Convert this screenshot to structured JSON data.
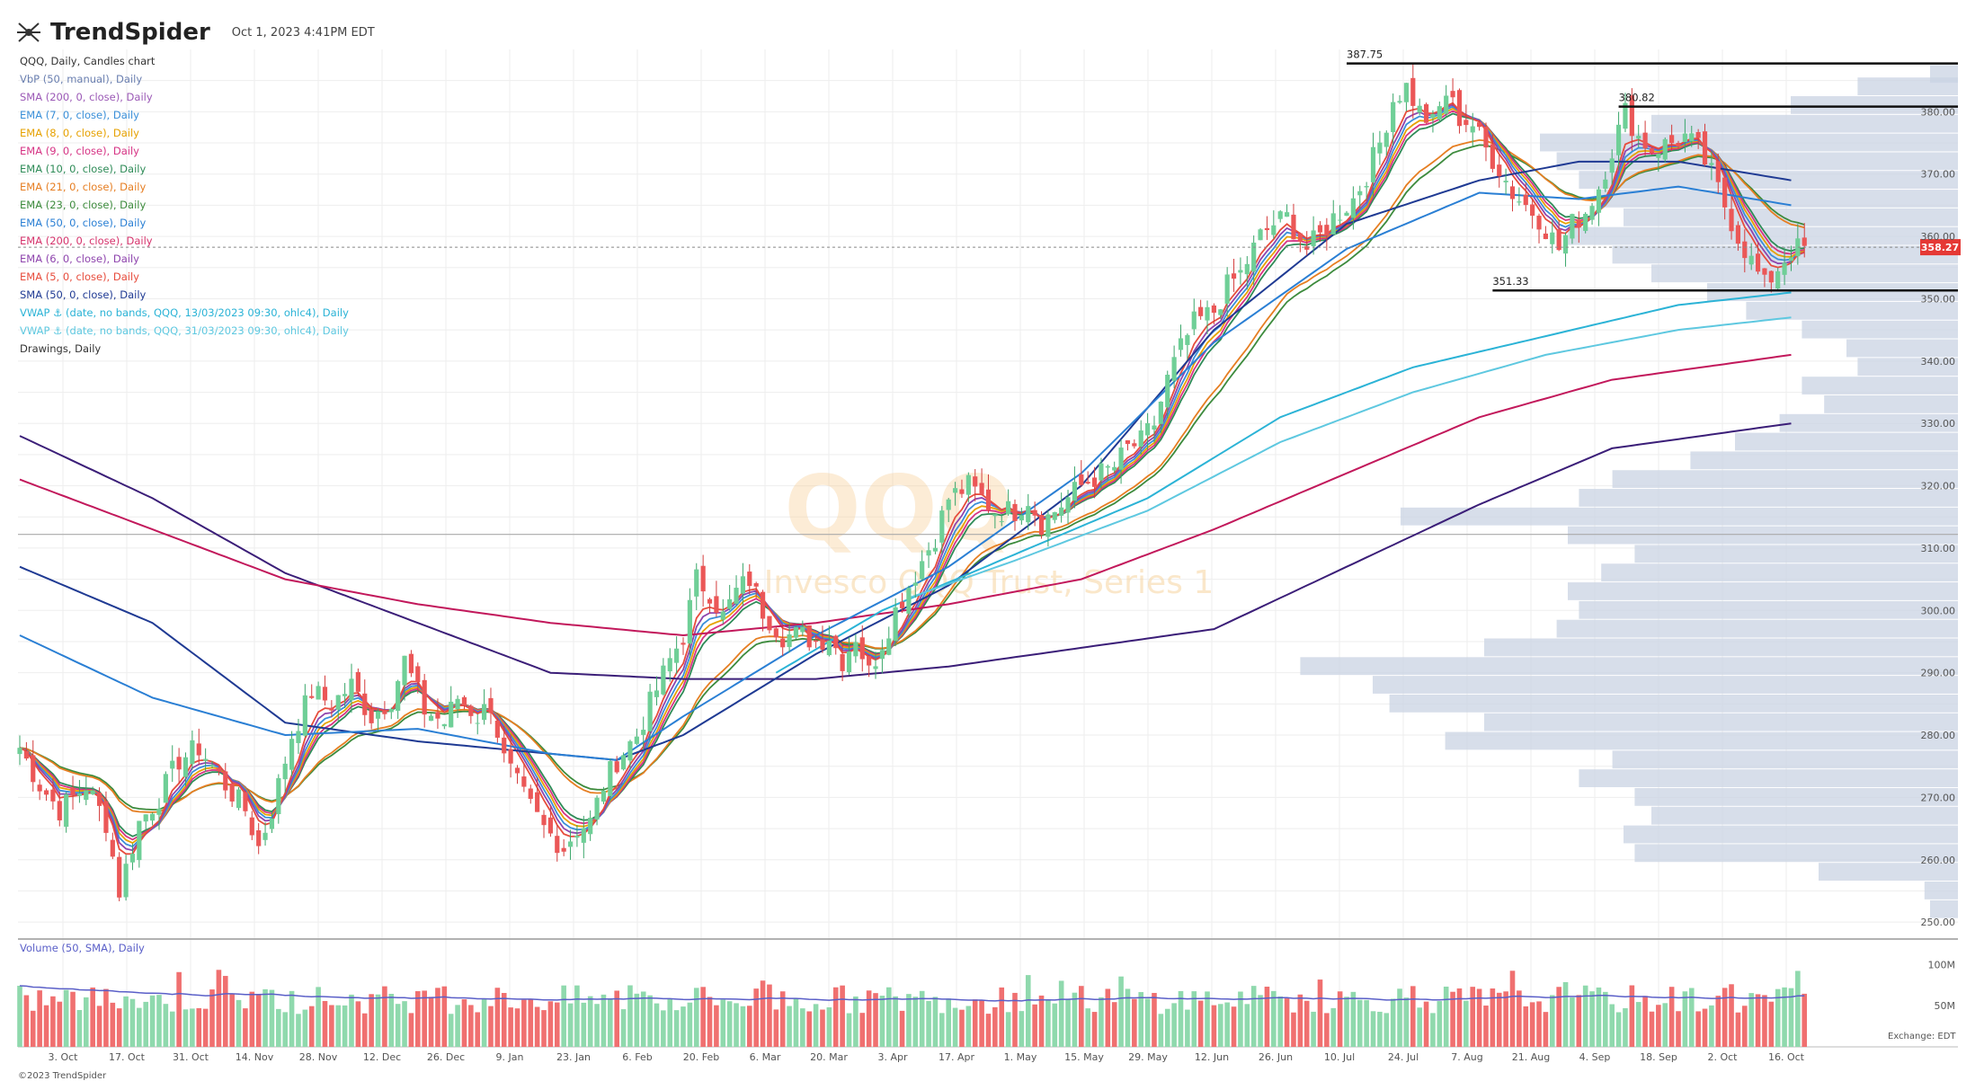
{
  "header": {
    "brand": "TrendSpider",
    "timestamp": "Oct 1, 2023 4:41PM EDT"
  },
  "legend": [
    {
      "label": "QQQ, Daily, Candles chart",
      "color": "#333333"
    },
    {
      "label": "VbP (50, manual), Daily",
      "color": "#6a7fb0"
    },
    {
      "label": "SMA (200, 0, close), Daily",
      "color": "#9b59b6"
    },
    {
      "label": "EMA (7, 0, close), Daily",
      "color": "#3a8fd8"
    },
    {
      "label": "EMA (8, 0, close), Daily",
      "color": "#e6a100"
    },
    {
      "label": "EMA (9, 0, close), Daily",
      "color": "#d63384"
    },
    {
      "label": "EMA (10, 0, close), Daily",
      "color": "#2e8b57"
    },
    {
      "label": "EMA (21, 0, close), Daily",
      "color": "#e67e22"
    },
    {
      "label": "EMA (23, 0, close), Daily",
      "color": "#3d8b3d"
    },
    {
      "label": "EMA (50, 0, close), Daily",
      "color": "#2a7fd4"
    },
    {
      "label": "EMA (200, 0, close), Daily",
      "color": "#d6336c"
    },
    {
      "label": "EMA (6, 0, close), Daily",
      "color": "#8e44ad"
    },
    {
      "label": "EMA (5, 0, close), Daily",
      "color": "#e74c3c"
    },
    {
      "label": "SMA (50, 0, close), Daily",
      "color": "#1f3a93"
    },
    {
      "label": "VWAP ⚓ (date, no bands, QQQ, 13/03/2023 09:30, ohlc4), Daily",
      "color": "#2bb3d6"
    },
    {
      "label": "VWAP ⚓ (date, no bands, QQQ, 31/03/2023 09:30, ohlc4), Daily",
      "color": "#5ec8e0"
    },
    {
      "label": "Drawings, Daily",
      "color": "#333333"
    }
  ],
  "volume_label": "Volume (50, SMA), Daily",
  "watermark": {
    "ticker": "QQQ",
    "name": "Invesco QQQ Trust, Series 1"
  },
  "copyright": "©2023 TrendSpider",
  "exchange": "Exchange: EDT",
  "colors": {
    "up": "#6fcf97",
    "down": "#eb5757",
    "vbp": "#c9d3e3",
    "grid": "#eeeeee",
    "price_tag": "#e53935"
  },
  "chart_data": {
    "type": "candlestick",
    "y_ticks": [
      "250.00",
      "260.00",
      "270.00",
      "280.00",
      "290.00",
      "300.00",
      "310.00",
      "320.00",
      "330.00",
      "340.00",
      "350.00",
      "360.00",
      "370.00",
      "380.00"
    ],
    "ylim": [
      248,
      390
    ],
    "x_ticks": [
      "3. Oct",
      "17. Oct",
      "31. Oct",
      "14. Nov",
      "28. Nov",
      "12. Dec",
      "26. Dec",
      "9. Jan",
      "23. Jan",
      "6. Feb",
      "20. Feb",
      "6. Mar",
      "20. Mar",
      "3. Apr",
      "17. Apr",
      "1. May",
      "15. May",
      "29. May",
      "12. Jun",
      "26. Jun",
      "10. Jul",
      "24. Jul",
      "7. Aug",
      "21. Aug",
      "4. Sep",
      "18. Sep",
      "2. Oct",
      "16. Oct"
    ],
    "last_price": "358.27",
    "close_path": [
      [
        0,
        278
      ],
      [
        3,
        272
      ],
      [
        6,
        268
      ],
      [
        10,
        272
      ],
      [
        13,
        266
      ],
      [
        15,
        255
      ],
      [
        18,
        266
      ],
      [
        21,
        270
      ],
      [
        24,
        276
      ],
      [
        27,
        278
      ],
      [
        31,
        272
      ],
      [
        34,
        268
      ],
      [
        36,
        262
      ],
      [
        38,
        268
      ],
      [
        41,
        280
      ],
      [
        44,
        287
      ],
      [
        47,
        285
      ],
      [
        50,
        288
      ],
      [
        53,
        283
      ],
      [
        56,
        286
      ],
      [
        58,
        292
      ],
      [
        61,
        284
      ],
      [
        64,
        282
      ],
      [
        66,
        286
      ],
      [
        69,
        283
      ],
      [
        71,
        285
      ],
      [
        73,
        276
      ],
      [
        76,
        270
      ],
      [
        79,
        265
      ],
      [
        82,
        262
      ],
      [
        84,
        265
      ],
      [
        86,
        266
      ],
      [
        88,
        272
      ],
      [
        90,
        276
      ],
      [
        93,
        280
      ],
      [
        95,
        285
      ],
      [
        98,
        292
      ],
      [
        100,
        296
      ],
      [
        102,
        305
      ],
      [
        104,
        303
      ],
      [
        106,
        299
      ],
      [
        108,
        303
      ],
      [
        110,
        305
      ],
      [
        112,
        300
      ],
      [
        115,
        296
      ],
      [
        118,
        296
      ],
      [
        120,
        295
      ],
      [
        122,
        296
      ],
      [
        124,
        292
      ],
      [
        126,
        296
      ],
      [
        128,
        290
      ],
      [
        130,
        295
      ],
      [
        132,
        300
      ],
      [
        135,
        306
      ],
      [
        138,
        312
      ],
      [
        140,
        318
      ],
      [
        143,
        320
      ],
      [
        145,
        318
      ],
      [
        147,
        316
      ],
      [
        150,
        316
      ],
      [
        152,
        318
      ],
      [
        154,
        314
      ],
      [
        156,
        316
      ],
      [
        158,
        318
      ],
      [
        160,
        320
      ],
      [
        163,
        322
      ],
      [
        165,
        323
      ],
      [
        167,
        326
      ],
      [
        169,
        327
      ],
      [
        171,
        330
      ],
      [
        173,
        337
      ],
      [
        175,
        342
      ],
      [
        177,
        346
      ],
      [
        180,
        348
      ],
      [
        182,
        352
      ],
      [
        184,
        354
      ],
      [
        187,
        360
      ],
      [
        189,
        362
      ],
      [
        191,
        363
      ],
      [
        194,
        358
      ],
      [
        196,
        360
      ],
      [
        198,
        363
      ],
      [
        201,
        366
      ],
      [
        203,
        370
      ],
      [
        205,
        375
      ],
      [
        207,
        382
      ],
      [
        209,
        384
      ],
      [
        211,
        380
      ],
      [
        213,
        378
      ],
      [
        215,
        383
      ],
      [
        217,
        379
      ],
      [
        219,
        378
      ],
      [
        221,
        374
      ],
      [
        223,
        371
      ],
      [
        225,
        367
      ],
      [
        227,
        365
      ],
      [
        229,
        363
      ],
      [
        232,
        358
      ],
      [
        234,
        362
      ],
      [
        236,
        364
      ],
      [
        238,
        368
      ],
      [
        240,
        374
      ],
      [
        242,
        380
      ],
      [
        244,
        376
      ],
      [
        246,
        374
      ],
      [
        249,
        375
      ],
      [
        251,
        376
      ],
      [
        253,
        374
      ],
      [
        255,
        370
      ],
      [
        257,
        365
      ],
      [
        259,
        360
      ],
      [
        261,
        356
      ],
      [
        263,
        352
      ],
      [
        265,
        355
      ],
      [
        267,
        358
      ]
    ],
    "close_path_note": "",
    "moving_averages": [
      {
        "name": "SMA (200)",
        "color": "#3b1e78",
        "path": [
          [
            0,
            328
          ],
          [
            20,
            318
          ],
          [
            40,
            306
          ],
          [
            60,
            298
          ],
          [
            80,
            290
          ],
          [
            100,
            289
          ],
          [
            120,
            289
          ],
          [
            140,
            291
          ],
          [
            160,
            294
          ],
          [
            180,
            297
          ],
          [
            200,
            307
          ],
          [
            220,
            317
          ],
          [
            240,
            326
          ],
          [
            267,
            330
          ]
        ]
      },
      {
        "name": "EMA (200)",
        "color": "#c2185b",
        "path": [
          [
            0,
            321
          ],
          [
            20,
            313
          ],
          [
            40,
            305
          ],
          [
            60,
            301
          ],
          [
            80,
            298
          ],
          [
            100,
            296
          ],
          [
            120,
            298
          ],
          [
            140,
            301
          ],
          [
            160,
            305
          ],
          [
            180,
            313
          ],
          [
            200,
            322
          ],
          [
            220,
            331
          ],
          [
            240,
            337
          ],
          [
            267,
            341
          ]
        ]
      },
      {
        "name": "SMA (50)",
        "color": "#1f3a93",
        "path": [
          [
            0,
            307
          ],
          [
            20,
            298
          ],
          [
            40,
            282
          ],
          [
            60,
            279
          ],
          [
            80,
            277
          ],
          [
            90,
            276
          ],
          [
            100,
            280
          ],
          [
            120,
            293
          ],
          [
            140,
            304
          ],
          [
            160,
            320
          ],
          [
            180,
            345
          ],
          [
            200,
            362
          ],
          [
            220,
            369
          ],
          [
            235,
            372
          ],
          [
            250,
            372
          ],
          [
            267,
            369
          ]
        ]
      },
      {
        "name": "EMA (50)",
        "color": "#2a7fd4",
        "path": [
          [
            0,
            296
          ],
          [
            20,
            286
          ],
          [
            40,
            280
          ],
          [
            60,
            281
          ],
          [
            80,
            277
          ],
          [
            90,
            276
          ],
          [
            100,
            283
          ],
          [
            120,
            296
          ],
          [
            140,
            307
          ],
          [
            160,
            322
          ],
          [
            180,
            343
          ],
          [
            200,
            358
          ],
          [
            220,
            367
          ],
          [
            235,
            366
          ],
          [
            250,
            368
          ],
          [
            267,
            365
          ]
        ]
      },
      {
        "name": "VWAP 13/03",
        "color": "#2bb3d6",
        "path": [
          [
            114,
            290
          ],
          [
            130,
            300
          ],
          [
            150,
            309
          ],
          [
            170,
            318
          ],
          [
            190,
            331
          ],
          [
            210,
            339
          ],
          [
            230,
            344
          ],
          [
            250,
            349
          ],
          [
            267,
            351
          ]
        ]
      },
      {
        "name": "VWAP 31/03",
        "color": "#5ec8e0",
        "path": [
          [
            134,
            302
          ],
          [
            150,
            308
          ],
          [
            170,
            316
          ],
          [
            190,
            327
          ],
          [
            210,
            335
          ],
          [
            230,
            341
          ],
          [
            250,
            345
          ],
          [
            267,
            347
          ]
        ]
      }
    ],
    "horizontal_levels": [
      {
        "label": "387.75",
        "value": 387.75,
        "from": 200
      },
      {
        "label": "380.82",
        "value": 380.82,
        "from": 241
      },
      {
        "label": "351.33",
        "value": 351.33,
        "from": 222
      }
    ],
    "reference_line": 312.2,
    "vbp_profile": [
      [
        386,
        0.05
      ],
      [
        384,
        0.18
      ],
      [
        381,
        0.3
      ],
      [
        378,
        0.55
      ],
      [
        375,
        0.75
      ],
      [
        372,
        0.72
      ],
      [
        369,
        0.68
      ],
      [
        366,
        0.64
      ],
      [
        363,
        0.6
      ],
      [
        360,
        0.7
      ],
      [
        357,
        0.62
      ],
      [
        354,
        0.55
      ],
      [
        351,
        0.45
      ],
      [
        348,
        0.38
      ],
      [
        345,
        0.28
      ],
      [
        342,
        0.2
      ],
      [
        339,
        0.18
      ],
      [
        336,
        0.28
      ],
      [
        333,
        0.24
      ],
      [
        330,
        0.32
      ],
      [
        327,
        0.4
      ],
      [
        324,
        0.48
      ],
      [
        321,
        0.62
      ],
      [
        318,
        0.68
      ],
      [
        315,
        1.0
      ],
      [
        312,
        0.7
      ],
      [
        309,
        0.58
      ],
      [
        306,
        0.64
      ],
      [
        303,
        0.7
      ],
      [
        300,
        0.68
      ],
      [
        297,
        0.72
      ],
      [
        294,
        0.85
      ],
      [
        291,
        1.18
      ],
      [
        288,
        1.05
      ],
      [
        285,
        1.02
      ],
      [
        282,
        0.85
      ],
      [
        279,
        0.92
      ],
      [
        276,
        0.62
      ],
      [
        273,
        0.68
      ],
      [
        270,
        0.58
      ],
      [
        267,
        0.55
      ],
      [
        264,
        0.6
      ],
      [
        261,
        0.58
      ],
      [
        258,
        0.25
      ],
      [
        255,
        0.06
      ],
      [
        252,
        0.05
      ]
    ],
    "volume_axis": [
      "100M",
      "50M"
    ]
  }
}
